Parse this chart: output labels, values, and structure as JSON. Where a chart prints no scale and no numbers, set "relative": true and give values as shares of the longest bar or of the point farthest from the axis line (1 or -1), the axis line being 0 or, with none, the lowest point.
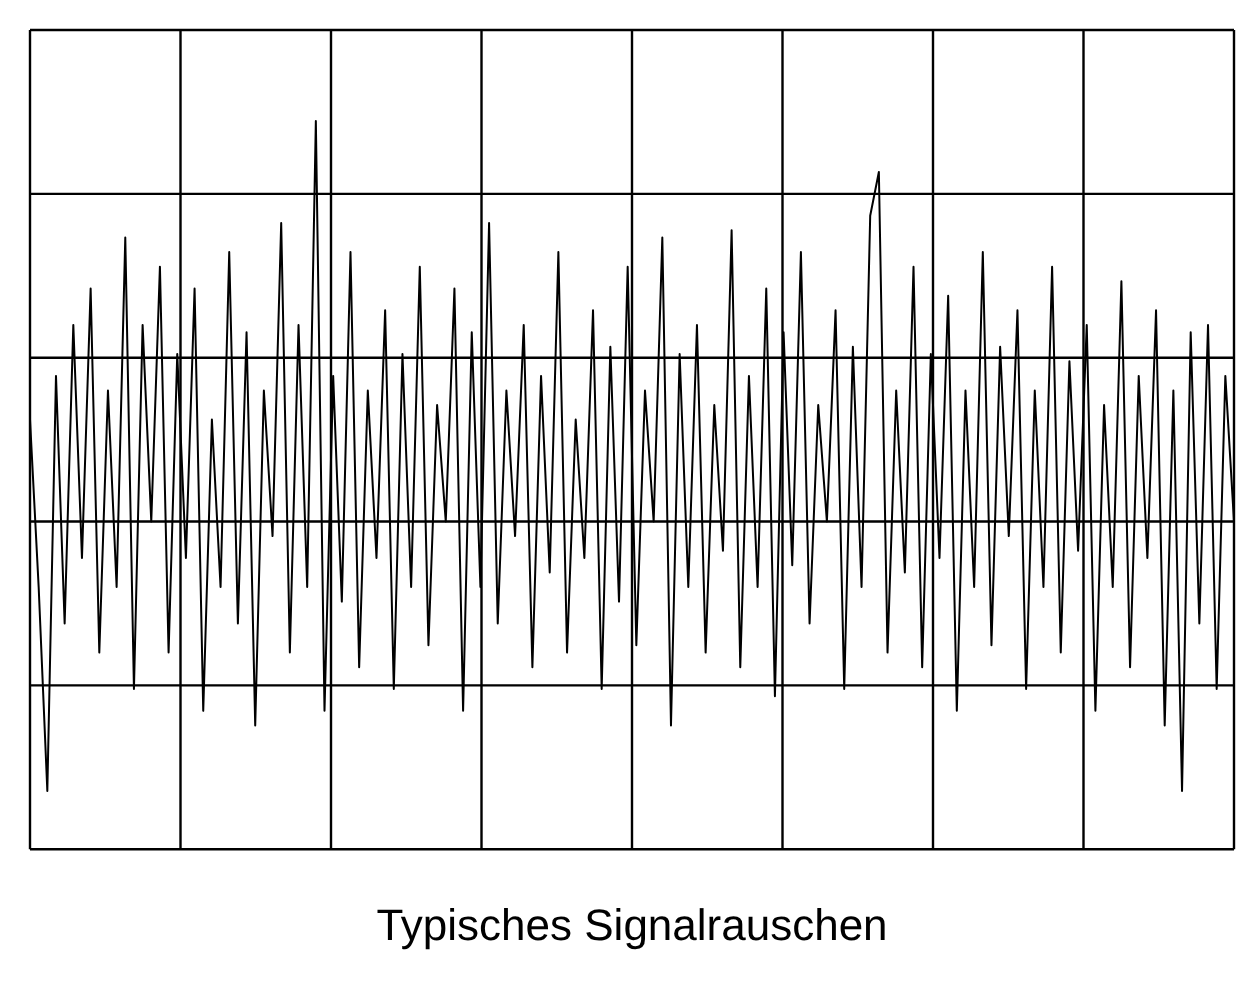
{
  "chart_data": {
    "type": "line",
    "title": "Typisches Signalrauschen",
    "relative": true,
    "grid": true,
    "legend": false,
    "marker": "none",
    "line_style": "solid",
    "categories": [
      null,
      null,
      null,
      null,
      null,
      null,
      null,
      null,
      null,
      null,
      null,
      null,
      null,
      null,
      null,
      null,
      null,
      null,
      null,
      null,
      null,
      null,
      null,
      null,
      null,
      null,
      null,
      null,
      null,
      null,
      null,
      null,
      null,
      null,
      null,
      null,
      null,
      null,
      null,
      null,
      null,
      null,
      null,
      null,
      null,
      null,
      null,
      null,
      null,
      null,
      null,
      null,
      null,
      null,
      null,
      null,
      null,
      null,
      null,
      null,
      null,
      null,
      null,
      null,
      null,
      null,
      null,
      null,
      null,
      null,
      null,
      null,
      null,
      null,
      null,
      null,
      null,
      null,
      null,
      null,
      null,
      null,
      null,
      null,
      null,
      null,
      null,
      null,
      null,
      null,
      null,
      null,
      null,
      null,
      null,
      null,
      null,
      null,
      null,
      null,
      null,
      null,
      null,
      null,
      null,
      null,
      null,
      null,
      null,
      null,
      null,
      null,
      null,
      null,
      null,
      null,
      null,
      null,
      null,
      null,
      null,
      null,
      null,
      null,
      null,
      null,
      null,
      null,
      null,
      null,
      null,
      null,
      null,
      null,
      null,
      null,
      null,
      null,
      null,
      null
    ],
    "series": [
      {
        "color": "#000000",
        "values": [
          0.59,
          0.36,
          0.08,
          0.65,
          0.31,
          0.72,
          0.4,
          0.77,
          0.27,
          0.63,
          0.36,
          0.84,
          0.22,
          0.72,
          0.45,
          0.8,
          0.27,
          0.68,
          0.4,
          0.77,
          0.19,
          0.59,
          0.36,
          0.82,
          0.31,
          0.71,
          0.17,
          0.63,
          0.43,
          0.86,
          0.27,
          0.72,
          0.36,
          1,
          0.19,
          0.65,
          0.34,
          0.82,
          0.25,
          0.63,
          0.4,
          0.74,
          0.22,
          0.68,
          0.36,
          0.8,
          0.28,
          0.61,
          0.45,
          0.77,
          0.19,
          0.71,
          0.36,
          0.86,
          0.31,
          0.63,
          0.43,
          0.72,
          0.25,
          0.65,
          0.38,
          0.82,
          0.27,
          0.59,
          0.4,
          0.74,
          0.22,
          0.69,
          0.34,
          0.8,
          0.28,
          0.63,
          0.45,
          0.84,
          0.17,
          0.68,
          0.36,
          0.72,
          0.27,
          0.61,
          0.41,
          0.85,
          0.25,
          0.65,
          0.36,
          0.77,
          0.21,
          0.71,
          0.39,
          0.82,
          0.31,
          0.61,
          0.45,
          0.74,
          0.22,
          0.69,
          0.36,
          0.87,
          0.93,
          0.27,
          0.63,
          0.38,
          0.8,
          0.25,
          0.68,
          0.4,
          0.76,
          0.19,
          0.63,
          0.36,
          0.82,
          0.28,
          0.69,
          0.43,
          0.74,
          0.22,
          0.63,
          0.36,
          0.8,
          0.27,
          0.67,
          0.41,
          0.72,
          0.19,
          0.61,
          0.36,
          0.78,
          0.25,
          0.65,
          0.4,
          0.74,
          0.17,
          0.63,
          0.08,
          0.71,
          0.31,
          0.72,
          0.22,
          0.65,
          0.45
        ]
      }
    ]
  }
}
